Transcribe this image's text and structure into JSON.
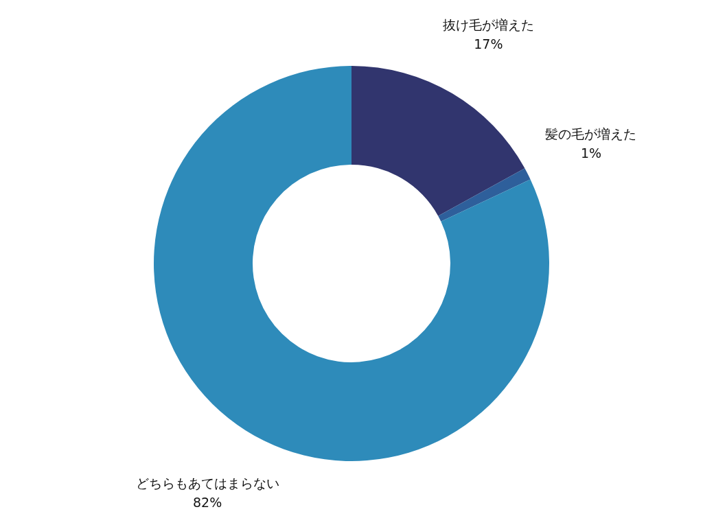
{
  "chart_data": {
    "type": "donut",
    "categories": [
      "抜け毛が増えた",
      "髪の毛が増えた",
      "どちらもあてはまらない"
    ],
    "values": [
      17,
      1,
      82
    ],
    "colors": [
      "#31356e",
      "#2e5f9b",
      "#2e8bba"
    ],
    "value_labels": [
      "17%",
      "1%",
      "82%"
    ]
  }
}
